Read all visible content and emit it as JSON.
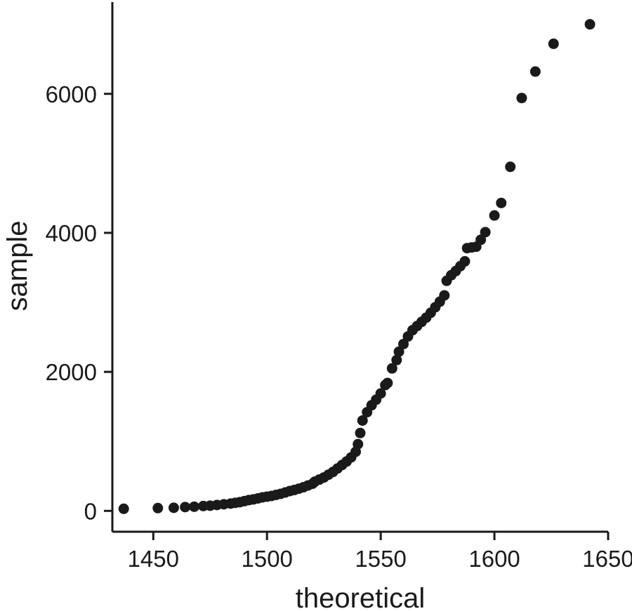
{
  "chart_data": {
    "type": "scatter",
    "title": "",
    "xlabel": "theoretical",
    "ylabel": "sample",
    "xlim": [
      1432,
      1650
    ],
    "ylim": [
      -300,
      7350
    ],
    "xticks": [
      1450,
      1500,
      1550,
      1600,
      1650
    ],
    "yticks": [
      0,
      2000,
      4000,
      6000
    ],
    "grid": false,
    "legend": "none",
    "point_color": "#1a1a1a",
    "series": [
      {
        "points": [
          [
            1437,
            30
          ],
          [
            1452,
            40
          ],
          [
            1459,
            45
          ],
          [
            1464,
            55
          ],
          [
            1468,
            60
          ],
          [
            1472,
            70
          ],
          [
            1475,
            75
          ],
          [
            1478,
            85
          ],
          [
            1481,
            95
          ],
          [
            1484,
            105
          ],
          [
            1486,
            115
          ],
          [
            1488,
            125
          ],
          [
            1490,
            140
          ],
          [
            1492,
            155
          ],
          [
            1494,
            165
          ],
          [
            1496,
            180
          ],
          [
            1498,
            195
          ],
          [
            1500,
            205
          ],
          [
            1502,
            215
          ],
          [
            1504,
            230
          ],
          [
            1506,
            245
          ],
          [
            1508,
            265
          ],
          [
            1510,
            285
          ],
          [
            1512,
            300
          ],
          [
            1514,
            320
          ],
          [
            1516,
            340
          ],
          [
            1518,
            365
          ],
          [
            1520,
            390
          ],
          [
            1521,
            420
          ],
          [
            1523,
            450
          ],
          [
            1525,
            480
          ],
          [
            1527,
            520
          ],
          [
            1529,
            560
          ],
          [
            1531,
            610
          ],
          [
            1533,
            660
          ],
          [
            1535,
            710
          ],
          [
            1537,
            770
          ],
          [
            1539,
            850
          ],
          [
            1540,
            960
          ],
          [
            1541,
            1120
          ],
          [
            1542,
            1300
          ],
          [
            1544,
            1420
          ],
          [
            1546,
            1520
          ],
          [
            1548,
            1600
          ],
          [
            1550,
            1690
          ],
          [
            1552,
            1810
          ],
          [
            1553,
            1840
          ],
          [
            1555,
            2050
          ],
          [
            1557,
            2170
          ],
          [
            1558,
            2290
          ],
          [
            1560,
            2400
          ],
          [
            1562,
            2510
          ],
          [
            1564,
            2600
          ],
          [
            1566,
            2660
          ],
          [
            1568,
            2720
          ],
          [
            1570,
            2780
          ],
          [
            1572,
            2850
          ],
          [
            1574,
            2930
          ],
          [
            1576,
            3010
          ],
          [
            1578,
            3100
          ],
          [
            1579,
            3310
          ],
          [
            1581,
            3390
          ],
          [
            1583,
            3450
          ],
          [
            1585,
            3520
          ],
          [
            1587,
            3590
          ],
          [
            1588,
            3780
          ],
          [
            1590,
            3790
          ],
          [
            1592,
            3800
          ],
          [
            1594,
            3900
          ],
          [
            1596,
            4010
          ],
          [
            1600,
            4250
          ],
          [
            1603,
            4430
          ],
          [
            1607,
            4950
          ],
          [
            1612,
            5940
          ],
          [
            1618,
            6320
          ],
          [
            1626,
            6720
          ],
          [
            1642,
            7000
          ]
        ]
      }
    ]
  }
}
